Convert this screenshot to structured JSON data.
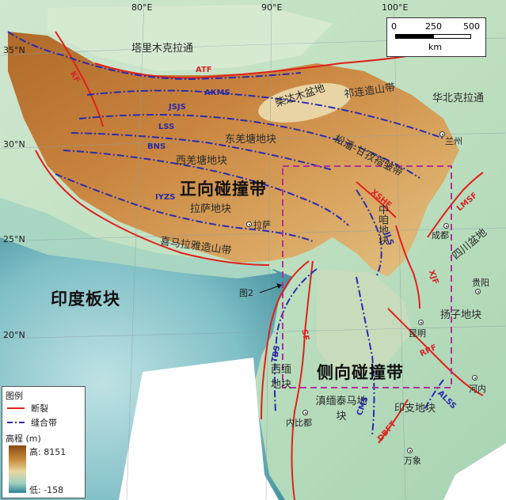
{
  "map": {
    "longitudes": [
      "80°E",
      "90°E",
      "100°E"
    ],
    "latitudes": [
      "35°N",
      "30°N",
      "25°N",
      "20°N"
    ],
    "major_zones": {
      "frontal": "正向碰撞带",
      "lateral": "侧向碰撞带"
    },
    "plates": {
      "india": "印度板块"
    },
    "regions": {
      "tarim": "塔里木克拉通",
      "qaidam": "柴达木盆地",
      "qilian": "祁连造山带",
      "north_china": "华北克拉通",
      "east_kunlun": "东羌塘地块",
      "west_kunlun": "西羌塘地块",
      "songpan": "松潘-甘孜褶皱带",
      "lhasa": "拉萨地块",
      "himalaya": "喜马拉雅造山带",
      "zhongza": "中咱地块",
      "sichuan": "四川盆地",
      "yangtze": "扬子地块",
      "west_burma": "西缅地块",
      "sibumasu": "滇缅泰马地块",
      "indochina": "印支地块"
    },
    "faults": [
      "ATF",
      "KF",
      "XSHF",
      "LMSF",
      "XJF",
      "RRF",
      "SF",
      "DBFT"
    ],
    "sutures": [
      "AKMS",
      "JSJS",
      "LSS",
      "BNS",
      "IYZS",
      "JLS",
      "TBS",
      "CMS",
      "ALSS"
    ],
    "cities": {
      "lanzhou": "兰州",
      "lhasa": "拉萨",
      "chengdu": "成都",
      "guiyang": "贵阳",
      "kunming": "昆明",
      "hanoi": "河内",
      "naypyidaw": "内比都",
      "vientiane": "万象"
    },
    "figure_ref": "图2"
  },
  "scale": {
    "ticks": [
      "0",
      "250",
      "500"
    ],
    "unit": "km"
  },
  "legend": {
    "title": "图例",
    "fault_label": "断裂",
    "suture_label": "缝合带",
    "elevation_title": "高程 (m)",
    "high_label": "高: 8151",
    "low_label": "低: -158"
  },
  "colors": {
    "fault": "#e0201c",
    "suture": "#2a2ab0",
    "box": "#b0309a"
  }
}
